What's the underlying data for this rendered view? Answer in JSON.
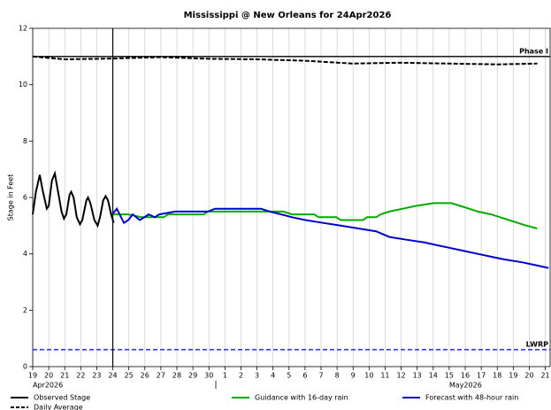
{
  "chart_data": {
    "type": "line",
    "title": "Mississippi @ New Orleans for 24Apr2026",
    "y_label": "Stage in Feet",
    "ylim": [
      0,
      12
    ],
    "yticks": [
      0,
      2,
      4,
      6,
      8,
      10,
      12
    ],
    "xlim": [
      0,
      32.3
    ],
    "xticks": [
      {
        "value": 0,
        "label": "19"
      },
      {
        "value": 1,
        "label": "20"
      },
      {
        "value": 2,
        "label": "21"
      },
      {
        "value": 3,
        "label": "22"
      },
      {
        "value": 4,
        "label": "23"
      },
      {
        "value": 5,
        "label": "24"
      },
      {
        "value": 6,
        "label": "25"
      },
      {
        "value": 7,
        "label": "26"
      },
      {
        "value": 8,
        "label": "27"
      },
      {
        "value": 9,
        "label": "28"
      },
      {
        "value": 10,
        "label": "29"
      },
      {
        "value": 11,
        "label": "30"
      },
      {
        "value": 12,
        "label": "1"
      },
      {
        "value": 13,
        "label": "2"
      },
      {
        "value": 14,
        "label": "3"
      },
      {
        "value": 15,
        "label": "4"
      },
      {
        "value": 16,
        "label": "5"
      },
      {
        "value": 17,
        "label": "6"
      },
      {
        "value": 18,
        "label": "7"
      },
      {
        "value": 19,
        "label": "8"
      },
      {
        "value": 20,
        "label": "9"
      },
      {
        "value": 21,
        "label": "10"
      },
      {
        "value": 22,
        "label": "11"
      },
      {
        "value": 23,
        "label": "12"
      },
      {
        "value": 24,
        "label": "13"
      },
      {
        "value": 25,
        "label": "14"
      },
      {
        "value": 26,
        "label": "15"
      },
      {
        "value": 27,
        "label": "16"
      },
      {
        "value": 28,
        "label": "17"
      },
      {
        "value": 29,
        "label": "18"
      },
      {
        "value": 30,
        "label": "19"
      },
      {
        "value": 31,
        "label": "20"
      },
      {
        "value": 32,
        "label": "21"
      }
    ],
    "month_labels": [
      {
        "value": 0,
        "label": "Apr2026"
      },
      {
        "value": 26,
        "label": "May2026"
      }
    ],
    "grid": true,
    "current_time_x": 5,
    "reference_lines": [
      {
        "label": "Phase I",
        "value": 11,
        "color": "#000000",
        "dash": false
      },
      {
        "label": "LWRP",
        "value": 0.6,
        "color": "#0000cc",
        "dash": true
      }
    ],
    "series": [
      {
        "name": "Observed Stage",
        "color": "#000000",
        "dash": false,
        "x": [
          0,
          0.2,
          0.44,
          0.6,
          0.88,
          1.0,
          1.2,
          1.38,
          1.55,
          1.8,
          1.95,
          2.1,
          2.3,
          2.4,
          2.55,
          2.75,
          2.95,
          3.1,
          3.35,
          3.45,
          3.6,
          3.85,
          4.05,
          4.2,
          4.4,
          4.55,
          4.7,
          4.9,
          5.0,
          5.05
        ],
        "values": [
          5.4,
          6.2,
          6.8,
          6.3,
          5.6,
          5.7,
          6.6,
          6.85,
          6.3,
          5.5,
          5.25,
          5.4,
          6.1,
          6.2,
          6.0,
          5.3,
          5.05,
          5.2,
          5.9,
          6.0,
          5.8,
          5.2,
          5.0,
          5.3,
          5.9,
          6.05,
          5.9,
          5.4,
          5.2,
          5.1
        ]
      },
      {
        "name": "Daily Average",
        "color": "#000000",
        "dash": true,
        "x": [
          0,
          2,
          5,
          8,
          11,
          14,
          17,
          20,
          23,
          26,
          29,
          31.5
        ],
        "values": [
          11.0,
          10.9,
          10.93,
          10.98,
          10.92,
          10.9,
          10.85,
          10.75,
          10.78,
          10.75,
          10.72,
          10.75
        ]
      },
      {
        "name": "Guidance with 16-day rain",
        "color": "#00aa00",
        "dash": false,
        "x": [
          4.97,
          5.97,
          6.8,
          8.18,
          8.45,
          10.66,
          10.94,
          15.64,
          16.19,
          17.57,
          17.85,
          18.95,
          19.23,
          20.61,
          20.88,
          21.44,
          21.71,
          22.27,
          23.09,
          23.92,
          25.03,
          26.13,
          26.69,
          27.24,
          27.79,
          28.62,
          29.17,
          29.72,
          30.28,
          30.83,
          31.49
        ],
        "values": [
          5.4,
          5.4,
          5.3,
          5.3,
          5.4,
          5.4,
          5.5,
          5.5,
          5.4,
          5.4,
          5.3,
          5.3,
          5.2,
          5.2,
          5.3,
          5.3,
          5.4,
          5.5,
          5.6,
          5.7,
          5.8,
          5.8,
          5.7,
          5.6,
          5.5,
          5.4,
          5.3,
          5.2,
          5.1,
          5.0,
          4.9
        ]
      },
      {
        "name": "Forecast with 48-hour rain",
        "color": "#0000cc",
        "dash": false,
        "x": [
          4.97,
          5.25,
          5.69,
          5.97,
          6.24,
          6.69,
          7.24,
          7.62,
          7.9,
          8.9,
          10.94,
          11.38,
          14.25,
          14.8,
          15.52,
          16.19,
          17.02,
          18.12,
          19.23,
          20.33,
          21.44,
          22.27,
          23.37,
          24.48,
          25.3,
          26.13,
          26.96,
          27.79,
          28.62,
          29.45,
          30.55,
          31.38,
          32.2
        ],
        "values": [
          5.4,
          5.6,
          5.1,
          5.2,
          5.4,
          5.2,
          5.4,
          5.3,
          5.4,
          5.5,
          5.5,
          5.6,
          5.6,
          5.5,
          5.4,
          5.3,
          5.2,
          5.1,
          5.0,
          4.9,
          4.8,
          4.6,
          4.5,
          4.4,
          4.3,
          4.2,
          4.1,
          4.0,
          3.9,
          3.8,
          3.7,
          3.6,
          3.5
        ]
      }
    ]
  }
}
